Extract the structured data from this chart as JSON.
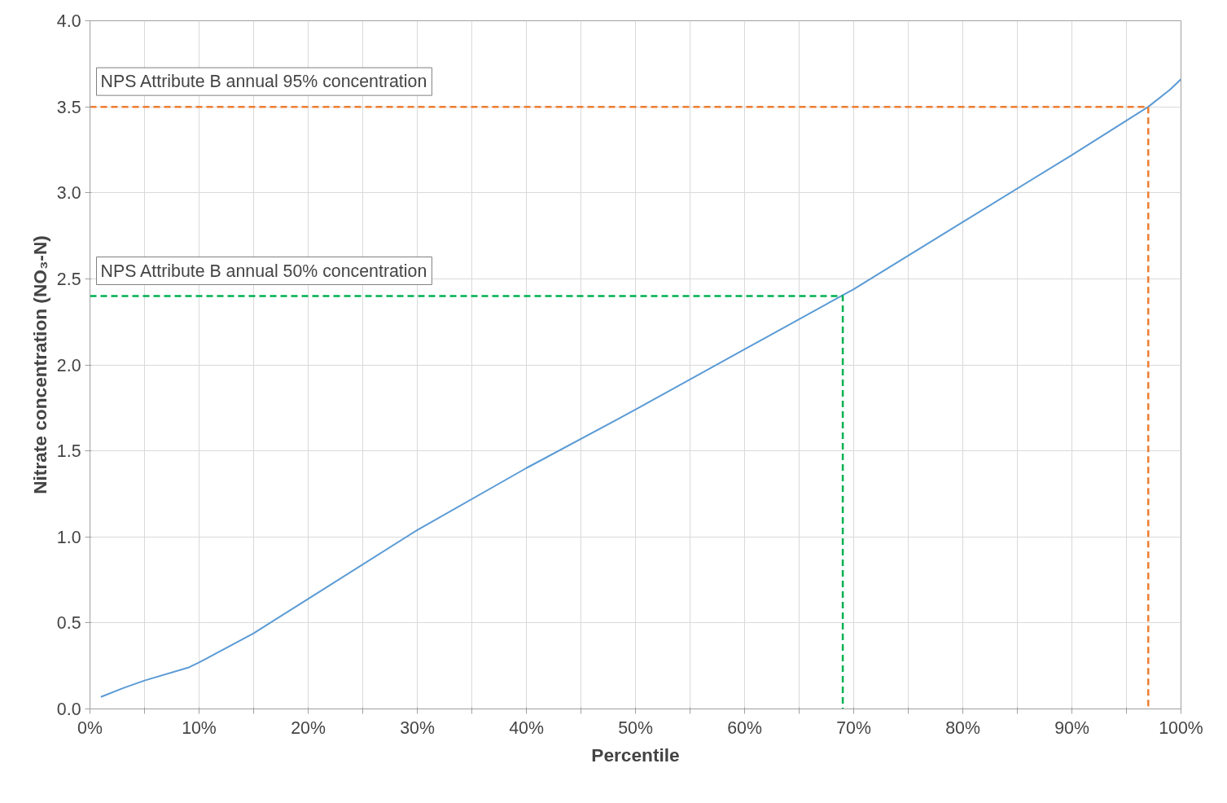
{
  "chart_data": {
    "type": "line",
    "xlabel": "Percentile",
    "ylabel": "Nitrate concentration (NO₃-N)",
    "xlim": [
      0,
      100
    ],
    "ylim": [
      0,
      4
    ],
    "xticks": [
      {
        "value": 0,
        "label": "0%"
      },
      {
        "value": 5,
        "label": null
      },
      {
        "value": 10,
        "label": "10%"
      },
      {
        "value": 15,
        "label": null
      },
      {
        "value": 20,
        "label": "20%"
      },
      {
        "value": 25,
        "label": null
      },
      {
        "value": 30,
        "label": "30%"
      },
      {
        "value": 35,
        "label": null
      },
      {
        "value": 40,
        "label": "40%"
      },
      {
        "value": 45,
        "label": null
      },
      {
        "value": 50,
        "label": "50%"
      },
      {
        "value": 55,
        "label": null
      },
      {
        "value": 60,
        "label": "60%"
      },
      {
        "value": 65,
        "label": null
      },
      {
        "value": 70,
        "label": "70%"
      },
      {
        "value": 75,
        "label": null
      },
      {
        "value": 80,
        "label": "80%"
      },
      {
        "value": 85,
        "label": null
      },
      {
        "value": 90,
        "label": "90%"
      },
      {
        "value": 95,
        "label": null
      },
      {
        "value": 100,
        "label": "100%"
      }
    ],
    "yticks": [
      {
        "value": 0,
        "label": "0.0"
      },
      {
        "value": 0.5,
        "label": "0.5"
      },
      {
        "value": 1,
        "label": "1.0"
      },
      {
        "value": 1.5,
        "label": "1.5"
      },
      {
        "value": 2,
        "label": "2.0"
      },
      {
        "value": 2.5,
        "label": "2.5"
      },
      {
        "value": 3,
        "label": "3.0"
      },
      {
        "value": 3.5,
        "label": "3.5"
      },
      {
        "value": 4,
        "label": "4.0"
      }
    ],
    "grid": true,
    "series": [
      {
        "color": "#5b9bd5",
        "line_style": "solid",
        "x": [
          1,
          3,
          5,
          9,
          10,
          15,
          20,
          30,
          40,
          50,
          60,
          70,
          80,
          90,
          97,
          99,
          100
        ],
        "values": [
          0.07,
          0.12,
          0.165,
          0.24,
          0.27,
          0.44,
          0.64,
          1.04,
          1.4,
          1.74,
          2.09,
          2.44,
          2.83,
          3.22,
          3.5,
          3.6,
          3.66
        ]
      },
      {
        "name": "NPS Attribute B annual 95% concentration",
        "color": "#ed7d31",
        "line_style": "dashed",
        "x": [
          0,
          97,
          97
        ],
        "values": [
          3.5,
          3.5,
          0
        ]
      },
      {
        "name": "NPS Attribute B annual 50% concentration",
        "color": "#00b050",
        "line_style": "dashed",
        "x": [
          0,
          69,
          69
        ],
        "values": [
          2.4,
          2.4,
          0
        ]
      }
    ]
  }
}
